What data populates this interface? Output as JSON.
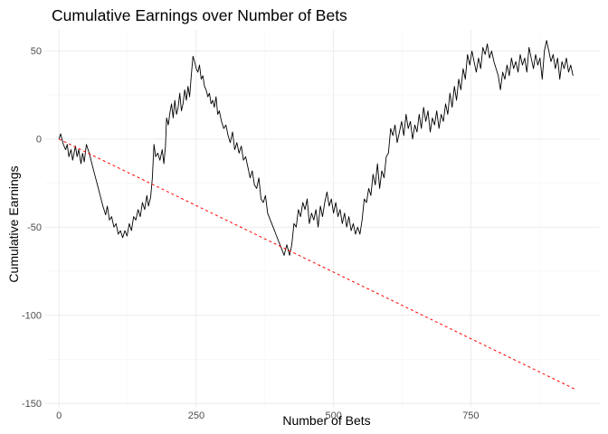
{
  "chart_data": {
    "type": "line",
    "title": "Cumulative Earnings over Number of Bets",
    "xlabel": "Number of Bets",
    "ylabel": "Cumulative Earnings",
    "xlim": [
      -25,
      985
    ],
    "ylim": [
      -152,
      62
    ],
    "x_ticks": [
      0,
      250,
      500,
      750
    ],
    "y_ticks": [
      50,
      0,
      -50,
      -100,
      -150
    ],
    "x_minor": [
      125,
      375,
      625,
      875
    ],
    "y_minor": [
      25,
      -25,
      -75,
      -125
    ],
    "grid": true,
    "series": [
      {
        "style": "solid",
        "color": "#000000",
        "points": [
          [
            0,
            0
          ],
          [
            3,
            3
          ],
          [
            8,
            -3
          ],
          [
            12,
            -6
          ],
          [
            15,
            -3
          ],
          [
            18,
            -10
          ],
          [
            22,
            -6
          ],
          [
            25,
            -12
          ],
          [
            30,
            -4
          ],
          [
            33,
            -10
          ],
          [
            36,
            -6
          ],
          [
            40,
            -14
          ],
          [
            43,
            -8
          ],
          [
            46,
            -13
          ],
          [
            50,
            -3
          ],
          [
            55,
            -8
          ],
          [
            60,
            -14
          ],
          [
            65,
            -20
          ],
          [
            70,
            -26
          ],
          [
            75,
            -32
          ],
          [
            80,
            -38
          ],
          [
            85,
            -43
          ],
          [
            88,
            -38
          ],
          [
            92,
            -46
          ],
          [
            96,
            -44
          ],
          [
            100,
            -50
          ],
          [
            104,
            -48
          ],
          [
            108,
            -54
          ],
          [
            112,
            -52
          ],
          [
            116,
            -56
          ],
          [
            120,
            -52
          ],
          [
            124,
            -55
          ],
          [
            128,
            -48
          ],
          [
            132,
            -52
          ],
          [
            136,
            -44
          ],
          [
            140,
            -46
          ],
          [
            144,
            -40
          ],
          [
            148,
            -44
          ],
          [
            152,
            -36
          ],
          [
            156,
            -40
          ],
          [
            160,
            -32
          ],
          [
            163,
            -38
          ],
          [
            167,
            -33
          ],
          [
            170,
            -22
          ],
          [
            173,
            -3
          ],
          [
            176,
            -10
          ],
          [
            180,
            -8
          ],
          [
            184,
            -12
          ],
          [
            188,
            -6
          ],
          [
            191,
            -14
          ],
          [
            194,
            -4
          ],
          [
            196,
            12
          ],
          [
            199,
            8
          ],
          [
            202,
            15
          ],
          [
            205,
            20
          ],
          [
            208,
            12
          ],
          [
            211,
            22
          ],
          [
            214,
            14
          ],
          [
            217,
            18
          ],
          [
            220,
            26
          ],
          [
            223,
            16
          ],
          [
            226,
            20
          ],
          [
            229,
            28
          ],
          [
            232,
            22
          ],
          [
            235,
            30
          ],
          [
            238,
            24
          ],
          [
            241,
            36
          ],
          [
            244,
            47
          ],
          [
            247,
            44
          ],
          [
            250,
            40
          ],
          [
            253,
            38
          ],
          [
            256,
            42
          ],
          [
            259,
            34
          ],
          [
            262,
            36
          ],
          [
            265,
            30
          ],
          [
            268,
            28
          ],
          [
            271,
            24
          ],
          [
            274,
            26
          ],
          [
            277,
            20
          ],
          [
            280,
            22
          ],
          [
            283,
            18
          ],
          [
            286,
            24
          ],
          [
            289,
            14
          ],
          [
            292,
            16
          ],
          [
            296,
            10
          ],
          [
            300,
            6
          ],
          [
            304,
            8
          ],
          [
            308,
            2
          ],
          [
            312,
            -2
          ],
          [
            316,
            4
          ],
          [
            320,
            -6
          ],
          [
            324,
            -2
          ],
          [
            328,
            -8
          ],
          [
            332,
            -4
          ],
          [
            336,
            -12
          ],
          [
            340,
            -10
          ],
          [
            344,
            -16
          ],
          [
            348,
            -22
          ],
          [
            352,
            -18
          ],
          [
            356,
            -26
          ],
          [
            360,
            -28
          ],
          [
            364,
            -22
          ],
          [
            368,
            -34
          ],
          [
            372,
            -36
          ],
          [
            376,
            -32
          ],
          [
            380,
            -42
          ],
          [
            385,
            -46
          ],
          [
            390,
            -50
          ],
          [
            395,
            -54
          ],
          [
            400,
            -58
          ],
          [
            405,
            -62
          ],
          [
            410,
            -66
          ],
          [
            415,
            -60
          ],
          [
            420,
            -66
          ],
          [
            424,
            -60
          ],
          [
            428,
            -48
          ],
          [
            432,
            -50
          ],
          [
            436,
            -40
          ],
          [
            440,
            -44
          ],
          [
            444,
            -36
          ],
          [
            448,
            -40
          ],
          [
            452,
            -34
          ],
          [
            456,
            -48
          ],
          [
            460,
            -42
          ],
          [
            464,
            -46
          ],
          [
            468,
            -40
          ],
          [
            472,
            -50
          ],
          [
            476,
            -38
          ],
          [
            480,
            -44
          ],
          [
            484,
            -36
          ],
          [
            488,
            -30
          ],
          [
            492,
            -38
          ],
          [
            496,
            -34
          ],
          [
            500,
            -42
          ],
          [
            504,
            -36
          ],
          [
            508,
            -44
          ],
          [
            512,
            -40
          ],
          [
            516,
            -48
          ],
          [
            520,
            -42
          ],
          [
            524,
            -50
          ],
          [
            528,
            -44
          ],
          [
            532,
            -52
          ],
          [
            536,
            -48
          ],
          [
            540,
            -54
          ],
          [
            544,
            -50
          ],
          [
            548,
            -54
          ],
          [
            552,
            -46
          ],
          [
            556,
            -34
          ],
          [
            560,
            -36
          ],
          [
            564,
            -28
          ],
          [
            568,
            -32
          ],
          [
            572,
            -20
          ],
          [
            576,
            -26
          ],
          [
            580,
            -14
          ],
          [
            584,
            -28
          ],
          [
            588,
            -18
          ],
          [
            592,
            -22
          ],
          [
            596,
            -10
          ],
          [
            600,
            -8
          ],
          [
            604,
            6
          ],
          [
            608,
            2
          ],
          [
            612,
            8
          ],
          [
            616,
            -2
          ],
          [
            620,
            4
          ],
          [
            624,
            10
          ],
          [
            628,
            2
          ],
          [
            632,
            14
          ],
          [
            636,
            6
          ],
          [
            640,
            10
          ],
          [
            644,
            0
          ],
          [
            648,
            8
          ],
          [
            652,
            4
          ],
          [
            656,
            14
          ],
          [
            660,
            6
          ],
          [
            664,
            18
          ],
          [
            668,
            10
          ],
          [
            672,
            16
          ],
          [
            676,
            4
          ],
          [
            680,
            12
          ],
          [
            684,
            8
          ],
          [
            688,
            16
          ],
          [
            692,
            6
          ],
          [
            696,
            14
          ],
          [
            700,
            10
          ],
          [
            704,
            20
          ],
          [
            708,
            14
          ],
          [
            712,
            26
          ],
          [
            716,
            18
          ],
          [
            720,
            30
          ],
          [
            724,
            22
          ],
          [
            728,
            34
          ],
          [
            732,
            28
          ],
          [
            736,
            40
          ],
          [
            740,
            34
          ],
          [
            744,
            48
          ],
          [
            748,
            42
          ],
          [
            752,
            50
          ],
          [
            756,
            44
          ],
          [
            760,
            38
          ],
          [
            764,
            46
          ],
          [
            768,
            40
          ],
          [
            772,
            52
          ],
          [
            776,
            48
          ],
          [
            780,
            54
          ],
          [
            784,
            46
          ],
          [
            788,
            50
          ],
          [
            792,
            44
          ],
          [
            796,
            40
          ],
          [
            800,
            36
          ],
          [
            804,
            28
          ],
          [
            808,
            38
          ],
          [
            812,
            34
          ],
          [
            816,
            42
          ],
          [
            820,
            36
          ],
          [
            824,
            46
          ],
          [
            828,
            40
          ],
          [
            832,
            44
          ],
          [
            836,
            38
          ],
          [
            840,
            48
          ],
          [
            844,
            42
          ],
          [
            848,
            46
          ],
          [
            852,
            38
          ],
          [
            856,
            52
          ],
          [
            860,
            46
          ],
          [
            864,
            40
          ],
          [
            868,
            48
          ],
          [
            872,
            42
          ],
          [
            876,
            46
          ],
          [
            880,
            34
          ],
          [
            884,
            50
          ],
          [
            888,
            56
          ],
          [
            892,
            50
          ],
          [
            896,
            44
          ],
          [
            900,
            48
          ],
          [
            904,
            40
          ],
          [
            908,
            46
          ],
          [
            912,
            34
          ],
          [
            916,
            44
          ],
          [
            920,
            40
          ],
          [
            924,
            46
          ],
          [
            928,
            38
          ],
          [
            932,
            42
          ],
          [
            936,
            36
          ]
        ]
      },
      {
        "style": "dashed",
        "color": "#ff0000",
        "points": [
          [
            0,
            0
          ],
          [
            940,
            -142
          ]
        ]
      }
    ]
  }
}
